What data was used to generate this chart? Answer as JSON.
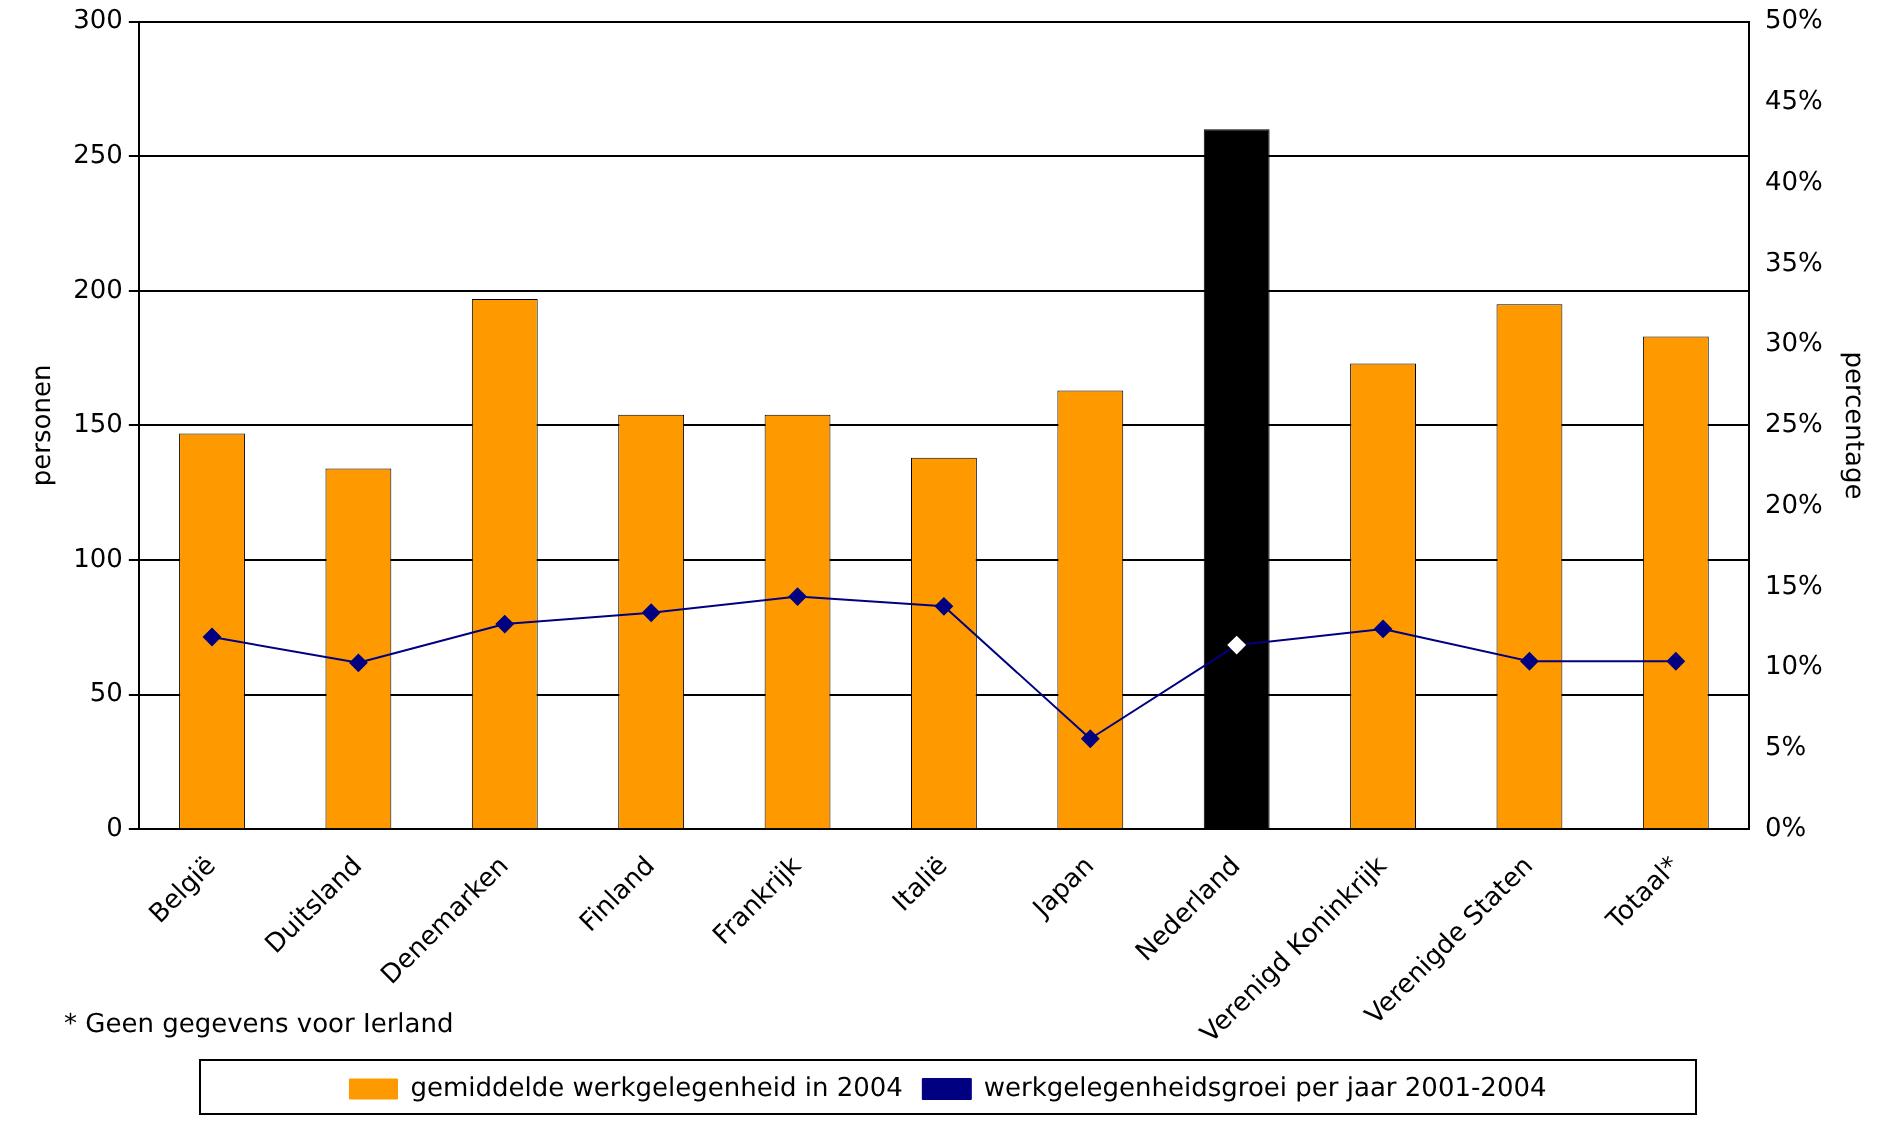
{
  "chart_data": {
    "type": "bar",
    "categories": [
      "België",
      "Duitsland",
      "Denemarken",
      "Finland",
      "Frankrijk",
      "Italië",
      "Japan",
      "Nederland",
      "Verenigd Koninkrijk",
      "Verenigde Staten",
      "Totaal*"
    ],
    "series": [
      {
        "name": "gemiddelde werkgelegenheid in 2004",
        "color": "#ff9900",
        "colors": [
          "#ff9900",
          "#ff9900",
          "#ff9900",
          "#ff9900",
          "#ff9900",
          "#ff9900",
          "#ff9900",
          "#000000",
          "#ff9900",
          "#ff9900",
          "#ff9900"
        ],
        "values": [
          147,
          134,
          197,
          154,
          154,
          138,
          163,
          260,
          173,
          195,
          183
        ]
      },
      {
        "name": "werkgelegenheidsgroei per jaar 2001-2004",
        "type": "line",
        "axis": "y2",
        "color": "#000080",
        "colors": [
          "#000080",
          "#000080",
          "#000080",
          "#000080",
          "#000080",
          "#000080",
          "#000080",
          "#ffffff",
          "#000080",
          "#000080",
          "#000080"
        ],
        "values": [
          11.9,
          10.3,
          12.7,
          13.4,
          14.4,
          13.8,
          5.6,
          11.4,
          12.4,
          10.4,
          10.4
        ]
      }
    ],
    "ylabel": "personen",
    "y2label": "percentage",
    "ylim": [
      0,
      300
    ],
    "yticks": [
      0,
      50,
      100,
      150,
      200,
      250,
      300
    ],
    "y2lim": [
      0,
      50
    ],
    "y2ticks": [
      {
        "value": 0,
        "label": "0%"
      },
      {
        "value": 5,
        "label": "5%"
      },
      {
        "value": 10,
        "label": "10%"
      },
      {
        "value": 15,
        "label": "15%"
      },
      {
        "value": 20,
        "label": "20%"
      },
      {
        "value": 25,
        "label": "25%"
      },
      {
        "value": 30,
        "label": "30%"
      },
      {
        "value": 35,
        "label": "35%"
      },
      {
        "value": 40,
        "label": "40%"
      },
      {
        "value": 45,
        "label": "45%"
      },
      {
        "value": 50,
        "label": "50%"
      }
    ],
    "grid": "y",
    "legend": "bottom",
    "marker": "diamond",
    "line_style": "solid",
    "annotations": [
      "* Geen gegevens voor Ierland"
    ]
  }
}
